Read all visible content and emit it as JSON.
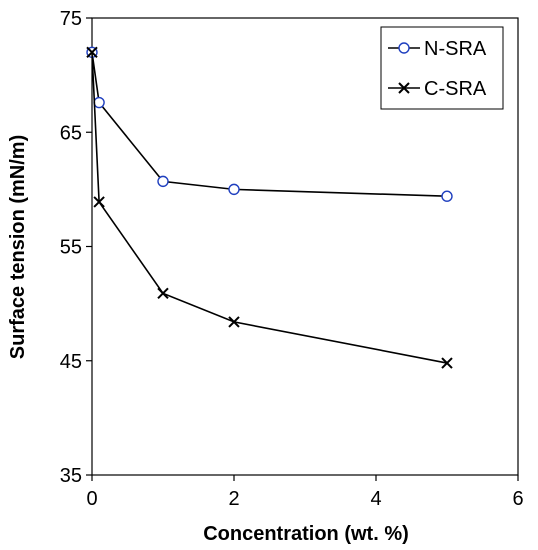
{
  "chart_data": {
    "type": "line",
    "title": "",
    "xlabel": "Concentration (wt. %)",
    "ylabel": "Surface tension (mN/m)",
    "xlim": [
      0,
      6
    ],
    "ylim": [
      35,
      75
    ],
    "xticks": [
      0,
      2,
      4,
      6
    ],
    "yticks": [
      35,
      45,
      55,
      65,
      75
    ],
    "xtick_labels": [
      "0",
      "2",
      "4",
      "6"
    ],
    "ytick_labels": [
      "35",
      "45",
      "55",
      "65",
      "75"
    ],
    "grid": false,
    "legend_position": "top-right",
    "series": [
      {
        "name": "N-SRA",
        "marker": "circle",
        "color": "#1f3fbf",
        "x": [
          0,
          0.1,
          1,
          2,
          5
        ],
        "y": [
          72,
          67.6,
          60.7,
          60,
          59.4
        ]
      },
      {
        "name": "C-SRA",
        "marker": "x",
        "color": "#000000",
        "x": [
          0,
          0.1,
          1,
          2,
          5
        ],
        "y": [
          72,
          58.9,
          50.9,
          48.4,
          44.8
        ]
      }
    ]
  }
}
